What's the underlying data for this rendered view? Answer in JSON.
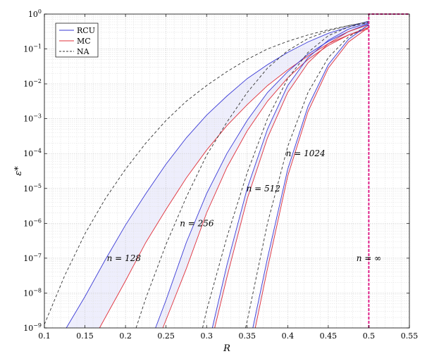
{
  "chart_data": {
    "type": "line",
    "xlabel": "R",
    "ylabel": "ε*",
    "xlim": [
      0.1,
      0.55
    ],
    "ylim_log10": [
      -9,
      0
    ],
    "yscale": "log",
    "grid": true,
    "legend_position": "top-left",
    "x_ticks": [
      "0.1",
      "0.15",
      "0.2",
      "0.25",
      "0.3",
      "0.35",
      "0.4",
      "0.45",
      "0.5",
      "0.55"
    ],
    "x_tick_values": [
      0.1,
      0.15,
      0.2,
      0.25,
      0.3,
      0.35,
      0.4,
      0.45,
      0.5,
      0.55
    ],
    "y_tick_exponents": [
      -9,
      -8,
      -7,
      -6,
      -5,
      -4,
      -3,
      -2,
      -1,
      0
    ],
    "y_tick_base": "10",
    "legend": [
      {
        "label": "RCU",
        "color": "#3a3ad6",
        "dash": "solid"
      },
      {
        "label": "MC",
        "color": "#e0303a",
        "dash": "solid"
      },
      {
        "label": "NA",
        "color": "#333333",
        "dash": "dashed"
      }
    ],
    "colors": {
      "rcu": "#3a3ad6",
      "mc": "#e0303a",
      "na": "#333333",
      "band": "#eeeefc",
      "infinity": "#e0208a"
    },
    "annotations": [
      {
        "text": "n = 128",
        "x": 0.198,
        "y_log10": -7.0
      },
      {
        "text": "n = 256",
        "x": 0.288,
        "y_log10": -6.0
      },
      {
        "text": "n = 512",
        "x": 0.37,
        "y_log10": -5.0
      },
      {
        "text": "n = 1024",
        "x": 0.422,
        "y_log10": -4.0
      },
      {
        "text": "n = ∞",
        "x": 0.5,
        "y_log10": -7.0
      }
    ],
    "series": [
      {
        "name": "n = 128",
        "rcu": [
          [
            0.127,
            -9
          ],
          [
            0.15,
            -8.1
          ],
          [
            0.175,
            -7.05
          ],
          [
            0.2,
            -6.05
          ],
          [
            0.225,
            -5.15
          ],
          [
            0.25,
            -4.3
          ],
          [
            0.275,
            -3.55
          ],
          [
            0.3,
            -2.9
          ],
          [
            0.325,
            -2.35
          ],
          [
            0.35,
            -1.85
          ],
          [
            0.375,
            -1.45
          ],
          [
            0.4,
            -1.1
          ],
          [
            0.425,
            -0.8
          ],
          [
            0.45,
            -0.55
          ],
          [
            0.475,
            -0.37
          ],
          [
            0.5,
            -0.2
          ]
        ],
        "mc": [
          [
            0.168,
            -9
          ],
          [
            0.2,
            -7.65
          ],
          [
            0.225,
            -6.55
          ],
          [
            0.25,
            -5.6
          ],
          [
            0.275,
            -4.7
          ],
          [
            0.3,
            -3.9
          ],
          [
            0.325,
            -3.2
          ],
          [
            0.35,
            -2.6
          ],
          [
            0.375,
            -2.05
          ],
          [
            0.4,
            -1.6
          ],
          [
            0.425,
            -1.2
          ],
          [
            0.45,
            -0.85
          ],
          [
            0.475,
            -0.6
          ],
          [
            0.5,
            -0.42
          ]
        ],
        "na": [
          [
            0.1,
            -8.9
          ],
          [
            0.125,
            -7.5
          ],
          [
            0.15,
            -6.3
          ],
          [
            0.175,
            -5.3
          ],
          [
            0.2,
            -4.45
          ],
          [
            0.225,
            -3.7
          ],
          [
            0.25,
            -3.05
          ],
          [
            0.275,
            -2.5
          ],
          [
            0.3,
            -2.05
          ],
          [
            0.325,
            -1.65
          ],
          [
            0.35,
            -1.3
          ],
          [
            0.375,
            -1.0
          ],
          [
            0.4,
            -0.78
          ],
          [
            0.425,
            -0.6
          ],
          [
            0.45,
            -0.45
          ],
          [
            0.475,
            -0.33
          ],
          [
            0.5,
            -0.22
          ]
        ]
      },
      {
        "name": "n = 256",
        "rcu": [
          [
            0.237,
            -9
          ],
          [
            0.25,
            -8.2
          ],
          [
            0.275,
            -6.55
          ],
          [
            0.3,
            -5.15
          ],
          [
            0.325,
            -4.0
          ],
          [
            0.35,
            -3.05
          ],
          [
            0.375,
            -2.25
          ],
          [
            0.4,
            -1.65
          ],
          [
            0.425,
            -1.15
          ],
          [
            0.45,
            -0.78
          ],
          [
            0.475,
            -0.5
          ],
          [
            0.5,
            -0.27
          ]
        ],
        "mc": [
          [
            0.246,
            -9
          ],
          [
            0.275,
            -7.3
          ],
          [
            0.3,
            -5.7
          ],
          [
            0.325,
            -4.4
          ],
          [
            0.35,
            -3.35
          ],
          [
            0.375,
            -2.5
          ],
          [
            0.4,
            -1.83
          ],
          [
            0.425,
            -1.3
          ],
          [
            0.45,
            -0.9
          ],
          [
            0.475,
            -0.6
          ],
          [
            0.5,
            -0.38
          ]
        ],
        "na": [
          [
            0.213,
            -9
          ],
          [
            0.225,
            -8.15
          ],
          [
            0.25,
            -6.6
          ],
          [
            0.275,
            -5.25
          ],
          [
            0.3,
            -4.05
          ],
          [
            0.325,
            -3.1
          ],
          [
            0.35,
            -2.25
          ],
          [
            0.375,
            -1.55
          ],
          [
            0.4,
            -1.05
          ],
          [
            0.425,
            -0.7
          ],
          [
            0.45,
            -0.48
          ],
          [
            0.475,
            -0.33
          ],
          [
            0.5,
            -0.22
          ]
        ]
      },
      {
        "name": "n = 512",
        "rcu": [
          [
            0.307,
            -9
          ],
          [
            0.325,
            -7.2
          ],
          [
            0.35,
            -5.0
          ],
          [
            0.375,
            -3.3
          ],
          [
            0.4,
            -2.05
          ],
          [
            0.425,
            -1.25
          ],
          [
            0.45,
            -0.75
          ],
          [
            0.475,
            -0.43
          ],
          [
            0.5,
            -0.25
          ]
        ],
        "mc": [
          [
            0.31,
            -9
          ],
          [
            0.325,
            -7.55
          ],
          [
            0.35,
            -5.3
          ],
          [
            0.375,
            -3.55
          ],
          [
            0.4,
            -2.25
          ],
          [
            0.425,
            -1.4
          ],
          [
            0.45,
            -0.85
          ],
          [
            0.475,
            -0.5
          ],
          [
            0.5,
            -0.3
          ]
        ],
        "na": [
          [
            0.295,
            -9
          ],
          [
            0.3,
            -8.5
          ],
          [
            0.325,
            -6.4
          ],
          [
            0.35,
            -4.55
          ],
          [
            0.375,
            -3.0
          ],
          [
            0.4,
            -1.85
          ],
          [
            0.425,
            -1.1
          ],
          [
            0.45,
            -0.62
          ],
          [
            0.475,
            -0.37
          ],
          [
            0.5,
            -0.24
          ]
        ]
      },
      {
        "name": "n = 1024",
        "rcu": [
          [
            0.357,
            -9
          ],
          [
            0.375,
            -7.0
          ],
          [
            0.4,
            -4.45
          ],
          [
            0.425,
            -2.65
          ],
          [
            0.45,
            -1.45
          ],
          [
            0.475,
            -0.72
          ],
          [
            0.5,
            -0.3
          ]
        ],
        "mc": [
          [
            0.36,
            -9
          ],
          [
            0.375,
            -7.3
          ],
          [
            0.4,
            -4.65
          ],
          [
            0.425,
            -2.8
          ],
          [
            0.45,
            -1.55
          ],
          [
            0.475,
            -0.8
          ],
          [
            0.5,
            -0.38
          ]
        ],
        "na": [
          [
            0.348,
            -9
          ],
          [
            0.35,
            -8.8
          ],
          [
            0.375,
            -6.0
          ],
          [
            0.4,
            -3.8
          ],
          [
            0.425,
            -2.25
          ],
          [
            0.45,
            -1.25
          ],
          [
            0.475,
            -0.65
          ],
          [
            0.5,
            -0.32
          ]
        ]
      },
      {
        "name": "n = ∞",
        "infinity": [
          [
            0.5,
            -9
          ],
          [
            0.5,
            0
          ],
          [
            0.55,
            0
          ]
        ]
      }
    ]
  }
}
